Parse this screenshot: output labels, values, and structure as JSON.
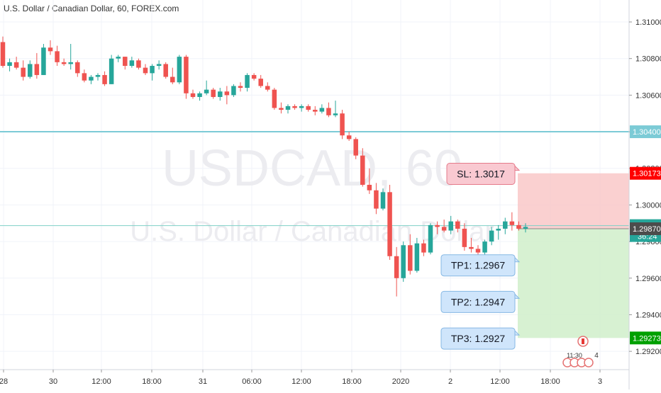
{
  "header": {
    "title": "U.S. Dollar / Canadian Dollar, 60, FOREX.com"
  },
  "watermark": {
    "symbol": "USDCAD, 60",
    "description": "U.S. Dollar / Canadian Dollar"
  },
  "colors": {
    "up": "#26a69a",
    "down": "#ef5350",
    "level_line": "#7ccbd6",
    "stop_zone": "#f9c4c4",
    "target_zone": "#d3efcd",
    "sl_label_bg": "#f9c9d1",
    "tp_label_bg": "#cfe5fb",
    "sl_badge": "#ff0000",
    "tp_badge": "#00a000",
    "price_badge": "#4c4c4c"
  },
  "chart_data": {
    "type": "candlestick",
    "ylim": [
      1.291,
      1.3112
    ],
    "y_ticks": [
      "1.31000",
      "1.30800",
      "1.30600",
      "1.30400",
      "1.30200",
      "1.30000",
      "1.29800",
      "1.29600",
      "1.29400",
      "1.29200"
    ],
    "x_ticks": [
      "28",
      "30",
      "12:00",
      "18:00",
      "31",
      "06:00",
      "12:00",
      "18:00",
      "2020",
      "2",
      "12:00",
      "18:00",
      "3"
    ],
    "candles": [
      {
        "o": 1.3089,
        "h": 1.3092,
        "l": 1.3075,
        "c": 1.3076
      },
      {
        "o": 1.3076,
        "h": 1.308,
        "l": 1.3073,
        "c": 1.3078
      },
      {
        "o": 1.3078,
        "h": 1.3081,
        "l": 1.3074,
        "c": 1.3075
      },
      {
        "o": 1.3075,
        "h": 1.3079,
        "l": 1.3068,
        "c": 1.307
      },
      {
        "o": 1.307,
        "h": 1.3079,
        "l": 1.3069,
        "c": 1.3077
      },
      {
        "o": 1.3077,
        "h": 1.3083,
        "l": 1.3069,
        "c": 1.3071
      },
      {
        "o": 1.3071,
        "h": 1.3088,
        "l": 1.3071,
        "c": 1.3086
      },
      {
        "o": 1.3086,
        "h": 1.309,
        "l": 1.3082,
        "c": 1.3084
      },
      {
        "o": 1.3084,
        "h": 1.3087,
        "l": 1.3076,
        "c": 1.3078
      },
      {
        "o": 1.3078,
        "h": 1.308,
        "l": 1.3076,
        "c": 1.3077
      },
      {
        "o": 1.3077,
        "h": 1.3088,
        "l": 1.3074,
        "c": 1.3078
      },
      {
        "o": 1.3078,
        "h": 1.3079,
        "l": 1.307,
        "c": 1.3072
      },
      {
        "o": 1.3072,
        "h": 1.3074,
        "l": 1.3067,
        "c": 1.3068
      },
      {
        "o": 1.3068,
        "h": 1.3071,
        "l": 1.3066,
        "c": 1.307
      },
      {
        "o": 1.307,
        "h": 1.3072,
        "l": 1.3068,
        "c": 1.3071
      },
      {
        "o": 1.3071,
        "h": 1.3073,
        "l": 1.3065,
        "c": 1.3066
      },
      {
        "o": 1.3066,
        "h": 1.3082,
        "l": 1.3066,
        "c": 1.308
      },
      {
        "o": 1.308,
        "h": 1.3082,
        "l": 1.3078,
        "c": 1.3081
      },
      {
        "o": 1.3081,
        "h": 1.3081,
        "l": 1.3074,
        "c": 1.3076
      },
      {
        "o": 1.3076,
        "h": 1.3081,
        "l": 1.3075,
        "c": 1.3079
      },
      {
        "o": 1.3079,
        "h": 1.308,
        "l": 1.3074,
        "c": 1.3075
      },
      {
        "o": 1.3075,
        "h": 1.3077,
        "l": 1.3071,
        "c": 1.3072
      },
      {
        "o": 1.3072,
        "h": 1.3077,
        "l": 1.3068,
        "c": 1.3076
      },
      {
        "o": 1.3076,
        "h": 1.3079,
        "l": 1.3074,
        "c": 1.3077
      },
      {
        "o": 1.3077,
        "h": 1.3078,
        "l": 1.3069,
        "c": 1.307
      },
      {
        "o": 1.307,
        "h": 1.3075,
        "l": 1.3066,
        "c": 1.3067
      },
      {
        "o": 1.3067,
        "h": 1.3082,
        "l": 1.3066,
        "c": 1.3081
      },
      {
        "o": 1.3081,
        "h": 1.3082,
        "l": 1.3058,
        "c": 1.3061
      },
      {
        "o": 1.3061,
        "h": 1.3063,
        "l": 1.3058,
        "c": 1.3059
      },
      {
        "o": 1.3059,
        "h": 1.3062,
        "l": 1.3057,
        "c": 1.3061
      },
      {
        "o": 1.3061,
        "h": 1.3068,
        "l": 1.306,
        "c": 1.3063
      },
      {
        "o": 1.3063,
        "h": 1.3064,
        "l": 1.3058,
        "c": 1.3059
      },
      {
        "o": 1.3059,
        "h": 1.3064,
        "l": 1.3057,
        "c": 1.3062
      },
      {
        "o": 1.3062,
        "h": 1.3065,
        "l": 1.3055,
        "c": 1.306
      },
      {
        "o": 1.306,
        "h": 1.3066,
        "l": 1.3059,
        "c": 1.3065
      },
      {
        "o": 1.3065,
        "h": 1.3067,
        "l": 1.3062,
        "c": 1.3064
      },
      {
        "o": 1.3064,
        "h": 1.3072,
        "l": 1.3062,
        "c": 1.3071
      },
      {
        "o": 1.3071,
        "h": 1.3072,
        "l": 1.3068,
        "c": 1.3069
      },
      {
        "o": 1.3069,
        "h": 1.3071,
        "l": 1.3064,
        "c": 1.3065
      },
      {
        "o": 1.3065,
        "h": 1.3067,
        "l": 1.3062,
        "c": 1.3063
      },
      {
        "o": 1.3063,
        "h": 1.3064,
        "l": 1.3052,
        "c": 1.3053
      },
      {
        "o": 1.3053,
        "h": 1.3056,
        "l": 1.305,
        "c": 1.3052
      },
      {
        "o": 1.3052,
        "h": 1.3055,
        "l": 1.305,
        "c": 1.3054
      },
      {
        "o": 1.3054,
        "h": 1.3055,
        "l": 1.3052,
        "c": 1.3053
      },
      {
        "o": 1.3053,
        "h": 1.3055,
        "l": 1.3051,
        "c": 1.3054
      },
      {
        "o": 1.3054,
        "h": 1.3055,
        "l": 1.3051,
        "c": 1.3052
      },
      {
        "o": 1.3052,
        "h": 1.3054,
        "l": 1.3049,
        "c": 1.3051
      },
      {
        "o": 1.3051,
        "h": 1.3055,
        "l": 1.305,
        "c": 1.3053
      },
      {
        "o": 1.3053,
        "h": 1.3056,
        "l": 1.3048,
        "c": 1.3049
      },
      {
        "o": 1.3049,
        "h": 1.3057,
        "l": 1.3048,
        "c": 1.305
      },
      {
        "o": 1.305,
        "h": 1.3052,
        "l": 1.3036,
        "c": 1.3038
      },
      {
        "o": 1.3038,
        "h": 1.304,
        "l": 1.3035,
        "c": 1.3036
      },
      {
        "o": 1.3036,
        "h": 1.3037,
        "l": 1.3025,
        "c": 1.3027
      },
      {
        "o": 1.3027,
        "h": 1.3031,
        "l": 1.301,
        "c": 1.3011
      },
      {
        "o": 1.3011,
        "h": 1.302,
        "l": 1.3006,
        "c": 1.3008
      },
      {
        "o": 1.3008,
        "h": 1.3012,
        "l": 1.2995,
        "c": 1.2998
      },
      {
        "o": 1.2998,
        "h": 1.3009,
        "l": 1.2997,
        "c": 1.3007
      },
      {
        "o": 1.3007,
        "h": 1.3011,
        "l": 1.297,
        "c": 1.2972
      },
      {
        "o": 1.2972,
        "h": 1.2977,
        "l": 1.295,
        "c": 1.296
      },
      {
        "o": 1.296,
        "h": 1.298,
        "l": 1.2958,
        "c": 1.2978
      },
      {
        "o": 1.2978,
        "h": 1.2984,
        "l": 1.2962,
        "c": 1.2964
      },
      {
        "o": 1.2964,
        "h": 1.2982,
        "l": 1.2963,
        "c": 1.2979
      },
      {
        "o": 1.2979,
        "h": 1.2981,
        "l": 1.2972,
        "c": 1.2974
      },
      {
        "o": 1.2974,
        "h": 1.299,
        "l": 1.2973,
        "c": 1.2989
      },
      {
        "o": 1.2989,
        "h": 1.2991,
        "l": 1.2984,
        "c": 1.2988
      },
      {
        "o": 1.2988,
        "h": 1.2992,
        "l": 1.2985,
        "c": 1.2986
      },
      {
        "o": 1.2986,
        "h": 1.2994,
        "l": 1.2984,
        "c": 1.2991
      },
      {
        "o": 1.2991,
        "h": 1.2992,
        "l": 1.2985,
        "c": 1.2987
      },
      {
        "o": 1.2987,
        "h": 1.299,
        "l": 1.2975,
        "c": 1.2977
      },
      {
        "o": 1.2977,
        "h": 1.2982,
        "l": 1.2974,
        "c": 1.2976
      },
      {
        "o": 1.2976,
        "h": 1.2978,
        "l": 1.2972,
        "c": 1.2974
      },
      {
        "o": 1.2974,
        "h": 1.2981,
        "l": 1.2972,
        "c": 1.298
      },
      {
        "o": 1.298,
        "h": 1.2988,
        "l": 1.2978,
        "c": 1.2986
      },
      {
        "o": 1.2986,
        "h": 1.2989,
        "l": 1.2981,
        "c": 1.2987
      },
      {
        "o": 1.2987,
        "h": 1.2993,
        "l": 1.2984,
        "c": 1.2991
      },
      {
        "o": 1.2991,
        "h": 1.2996,
        "l": 1.2986,
        "c": 1.2989
      },
      {
        "o": 1.2989,
        "h": 1.2991,
        "l": 1.2986,
        "c": 1.2987
      },
      {
        "o": 1.2987,
        "h": 1.299,
        "l": 1.2985,
        "c": 1.2988
      }
    ],
    "horizontal_line": {
      "value": 1.304,
      "label": "1.30400"
    },
    "current_price": {
      "value": 1.29887,
      "label": "1.29887",
      "countdown": "36:24"
    },
    "position": {
      "entry": 1.2987,
      "entry_label": "1.29870",
      "stop": 1.30173,
      "stop_label": "1.30173",
      "target": 1.29273,
      "target_label": "1.29273"
    },
    "annotations": [
      {
        "text": "SL: 1.3017",
        "value": 1.3017,
        "kind": "sl"
      },
      {
        "text": "TP1: 1.2967",
        "value": 1.2967,
        "kind": "tp"
      },
      {
        "text": "TP2: 1.2947",
        "value": 1.2947,
        "kind": "tp"
      },
      {
        "text": "TP3: 1.2927",
        "value": 1.2927,
        "kind": "tp"
      }
    ],
    "event_badges": {
      "count_text": "4"
    }
  }
}
